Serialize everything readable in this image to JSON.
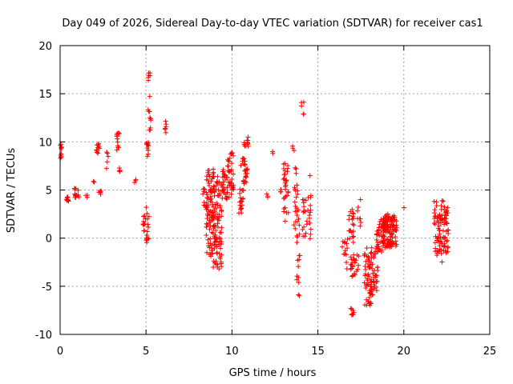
{
  "chart_data": {
    "type": "scatter",
    "title": "Day 049 of 2026, Sidereal Day-to-day VTEC variation (SDTVAR) for receiver cas1",
    "xlabel": "GPS time / hours",
    "ylabel": "SDTVAR / TECUs",
    "xlim": [
      0,
      25
    ],
    "ylim": [
      -10,
      20
    ],
    "xticks": [
      0,
      5,
      10,
      15,
      20,
      25
    ],
    "yticks": [
      -10,
      -5,
      0,
      5,
      10,
      15,
      20
    ],
    "xtick_labels": [
      "0",
      "5",
      "10",
      "15",
      "20",
      "25"
    ],
    "ytick_labels": [
      "-10",
      "-5",
      "0",
      "5",
      "10",
      "15",
      "20"
    ],
    "grid": true,
    "marker": "+",
    "color": "#ff0000",
    "clusters": [
      {
        "x": [
          0.0,
          0.1
        ],
        "y": [
          8.0,
          9.8
        ],
        "n": 10
      },
      {
        "x": [
          0.35,
          0.5
        ],
        "y": [
          3.8,
          4.4
        ],
        "n": 8
      },
      {
        "x": [
          0.8,
          1.1
        ],
        "y": [
          4.2,
          5.2
        ],
        "n": 14
      },
      {
        "x": [
          1.5,
          1.6
        ],
        "y": [
          4.2,
          4.9
        ],
        "n": 3
      },
      {
        "x": [
          1.9,
          2.0
        ],
        "y": [
          5.8,
          6.0
        ],
        "n": 2
      },
      {
        "x": [
          2.1,
          2.3
        ],
        "y": [
          8.7,
          9.9
        ],
        "n": 10
      },
      {
        "x": [
          2.25,
          2.4
        ],
        "y": [
          4.5,
          4.9
        ],
        "n": 6
      },
      {
        "x": [
          2.7,
          2.8
        ],
        "y": [
          6.5,
          9.7
        ],
        "n": 5
      },
      {
        "x": [
          3.3,
          3.45
        ],
        "y": [
          9.0,
          11.0
        ],
        "n": 12
      },
      {
        "x": [
          3.4,
          3.5
        ],
        "y": [
          6.9,
          7.3
        ],
        "n": 4
      },
      {
        "x": [
          4.3,
          4.45
        ],
        "y": [
          5.5,
          6.1
        ],
        "n": 3
      },
      {
        "x": [
          4.8,
          5.0
        ],
        "y": [
          0.7,
          2.5
        ],
        "n": 10
      },
      {
        "x": [
          5.0,
          5.15
        ],
        "y": [
          8.5,
          10.0
        ],
        "n": 10
      },
      {
        "x": [
          5.0,
          5.2
        ],
        "y": [
          -0.7,
          3.6
        ],
        "n": 14
      },
      {
        "x": [
          5.1,
          5.3
        ],
        "y": [
          11.0,
          17.3
        ],
        "n": 16
      },
      {
        "x": [
          6.1,
          6.25
        ],
        "y": [
          10.4,
          12.4
        ],
        "n": 6
      },
      {
        "x": [
          8.3,
          8.6
        ],
        "y": [
          3.2,
          5.2
        ],
        "n": 14
      },
      {
        "x": [
          8.5,
          9.0
        ],
        "y": [
          -2.0,
          7.2
        ],
        "n": 90
      },
      {
        "x": [
          8.9,
          9.4
        ],
        "y": [
          -3.3,
          6.5
        ],
        "n": 80
      },
      {
        "x": [
          9.4,
          9.7
        ],
        "y": [
          4.0,
          7.2
        ],
        "n": 24
      },
      {
        "x": [
          9.7,
          10.1
        ],
        "y": [
          4.0,
          9.0
        ],
        "n": 40
      },
      {
        "x": [
          10.4,
          10.7
        ],
        "y": [
          2.6,
          5.2
        ],
        "n": 22
      },
      {
        "x": [
          10.5,
          10.8
        ],
        "y": [
          7.5,
          8.3
        ],
        "n": 10
      },
      {
        "x": [
          10.6,
          10.9
        ],
        "y": [
          5.5,
          7.2
        ],
        "n": 16
      },
      {
        "x": [
          10.7,
          10.95
        ],
        "y": [
          9.5,
          10.9
        ],
        "n": 12
      },
      {
        "x": [
          12.0,
          12.1
        ],
        "y": [
          4.2,
          4.7
        ],
        "n": 3
      },
      {
        "x": [
          12.35,
          12.45
        ],
        "y": [
          8.8,
          9.0
        ],
        "n": 2
      },
      {
        "x": [
          12.8,
          13.0
        ],
        "y": [
          4.8,
          5.1
        ],
        "n": 4
      },
      {
        "x": [
          13.0,
          13.3
        ],
        "y": [
          1.5,
          7.8
        ],
        "n": 30
      },
      {
        "x": [
          13.6,
          13.8
        ],
        "y": [
          -1.0,
          8.5
        ],
        "n": 16
      },
      {
        "x": [
          13.5,
          13.65
        ],
        "y": [
          9.0,
          10.5
        ],
        "n": 3
      },
      {
        "x": [
          13.75,
          13.95
        ],
        "y": [
          -6.2,
          5.0
        ],
        "n": 22
      },
      {
        "x": [
          14.0,
          14.2
        ],
        "y": [
          12.8,
          14.4
        ],
        "n": 5
      },
      {
        "x": [
          14.1,
          14.6
        ],
        "y": [
          -0.2,
          4.5
        ],
        "n": 28
      },
      {
        "x": [
          14.5,
          14.6
        ],
        "y": [
          6.4,
          6.6
        ],
        "n": 1
      },
      {
        "x": [
          16.4,
          16.75
        ],
        "y": [
          -3.5,
          0.0
        ],
        "n": 14
      },
      {
        "x": [
          16.8,
          17.1
        ],
        "y": [
          -1.0,
          3.0
        ],
        "n": 20
      },
      {
        "x": [
          16.9,
          17.4
        ],
        "y": [
          -4.0,
          -1.5
        ],
        "n": 24
      },
      {
        "x": [
          16.9,
          17.15
        ],
        "y": [
          -8.0,
          -7.2
        ],
        "n": 8
      },
      {
        "x": [
          17.3,
          17.5
        ],
        "y": [
          1.0,
          4.2
        ],
        "n": 8
      },
      {
        "x": [
          17.7,
          18.1
        ],
        "y": [
          -7.2,
          -1.0
        ],
        "n": 50
      },
      {
        "x": [
          18.1,
          18.5
        ],
        "y": [
          -6.0,
          -1.0
        ],
        "n": 40
      },
      {
        "x": [
          18.4,
          18.9
        ],
        "y": [
          -1.5,
          2.0
        ],
        "n": 45
      },
      {
        "x": [
          18.8,
          19.6
        ],
        "y": [
          -1.0,
          2.5
        ],
        "n": 110
      },
      {
        "x": [
          20.0,
          20.1
        ],
        "y": [
          3.0,
          3.2
        ],
        "n": 1
      },
      {
        "x": [
          21.7,
          22.3
        ],
        "y": [
          -2.5,
          4.0
        ],
        "n": 60
      },
      {
        "x": [
          22.3,
          22.6
        ],
        "y": [
          -1.6,
          3.3
        ],
        "n": 40
      }
    ]
  }
}
